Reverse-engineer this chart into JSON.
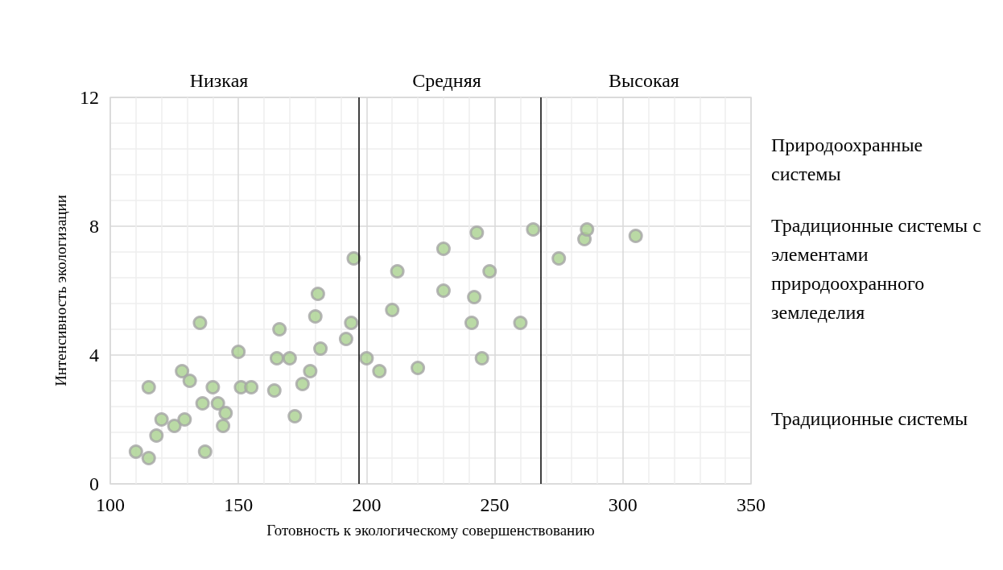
{
  "chart_data": {
    "type": "scatter",
    "xlabel": "Готовность к экологическому совершенствованию",
    "ylabel": "Интенсивность экологизации",
    "x": [
      110,
      115,
      115,
      118,
      120,
      125,
      128,
      129,
      131,
      135,
      136,
      137,
      140,
      142,
      144,
      145,
      150,
      151,
      155,
      164,
      165,
      166,
      170,
      172,
      175,
      178,
      180,
      181,
      182,
      192,
      194,
      195,
      200,
      205,
      210,
      212,
      220,
      230,
      230,
      241,
      242,
      243,
      245,
      248,
      260,
      265,
      275,
      285,
      286,
      305
    ],
    "values": [
      1.0,
      0.8,
      3.0,
      1.5,
      2.0,
      1.8,
      3.5,
      2.0,
      3.2,
      5.0,
      2.5,
      1.0,
      3.0,
      2.5,
      1.8,
      2.2,
      4.1,
      3.0,
      3.0,
      2.9,
      3.9,
      4.8,
      3.9,
      2.1,
      3.1,
      3.5,
      5.2,
      5.9,
      4.2,
      4.5,
      5.0,
      7.0,
      3.9,
      3.5,
      5.4,
      6.6,
      3.6,
      7.3,
      6.0,
      5.0,
      5.8,
      7.8,
      3.9,
      6.6,
      5.0,
      7.9,
      7.0,
      7.6,
      7.9,
      7.7
    ],
    "color": "#a9d18e",
    "marker": "circle",
    "xlim": [
      100,
      350
    ],
    "xticks": [
      100,
      150,
      200,
      250,
      300,
      350
    ],
    "ylim": [
      0,
      12
    ],
    "yticks": [
      0,
      4,
      8,
      12
    ],
    "grid": true,
    "ref_lines": [
      {
        "axis": "x",
        "value": 197,
        "color": "#000000"
      },
      {
        "axis": "x",
        "value": 268,
        "color": "#000000"
      }
    ],
    "annotations": [
      "Низкая",
      "Средняя",
      "Высокая",
      "Природоохранные системы",
      "Традиционные системы с элементами природоохранного земледелия",
      "Традиционные системы"
    ]
  }
}
